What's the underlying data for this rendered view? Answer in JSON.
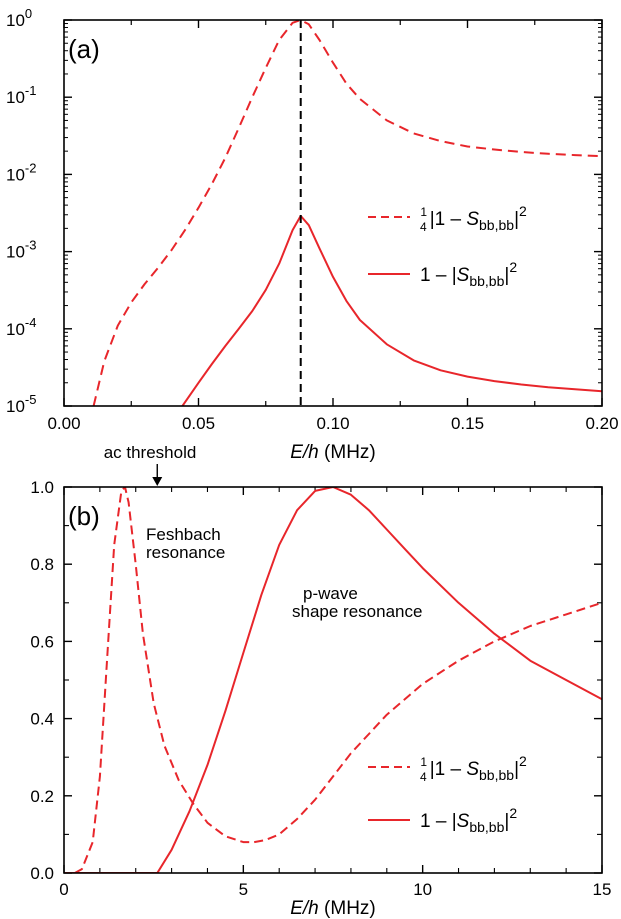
{
  "colors": {
    "curve": "#e8262b",
    "guide": "#000000"
  },
  "chart_data": [
    {
      "panel": "(a)",
      "type": "line",
      "xlabel_italic": "E/h",
      "xlabel_unit": "(MHz)",
      "xlim": [
        0.0,
        0.2
      ],
      "ylim": [
        1e-05,
        1
      ],
      "yscale": "log",
      "xticks": [
        "0.00",
        "0.05",
        "0.10",
        "0.15",
        "0.20"
      ],
      "yticks": [
        {
          "base": "10",
          "exp": "-5"
        },
        {
          "base": "10",
          "exp": "-4"
        },
        {
          "base": "10",
          "exp": "-3"
        },
        {
          "base": "10",
          "exp": "-2"
        },
        {
          "base": "10",
          "exp": "-1"
        },
        {
          "base": "10",
          "exp": "0"
        }
      ],
      "vertical_marker_x": 0.088,
      "legend_position": "right",
      "series": [
        {
          "name": "¼|1 − S_bb,bb|²",
          "style": "dashed",
          "x": [
            0.011,
            0.015,
            0.02,
            0.025,
            0.03,
            0.035,
            0.04,
            0.045,
            0.05,
            0.055,
            0.06,
            0.065,
            0.07,
            0.075,
            0.08,
            0.085,
            0.088,
            0.091,
            0.095,
            0.1,
            0.105,
            0.11,
            0.12,
            0.13,
            0.14,
            0.15,
            0.16,
            0.17,
            0.18,
            0.19,
            0.2
          ],
          "y": [
            1e-05,
            3.8e-05,
            0.00011,
            0.00022,
            0.00038,
            0.00062,
            0.00105,
            0.0019,
            0.0037,
            0.0075,
            0.0165,
            0.04,
            0.1,
            0.24,
            0.55,
            0.92,
            1.0,
            0.88,
            0.55,
            0.28,
            0.15,
            0.095,
            0.05,
            0.034,
            0.027,
            0.023,
            0.021,
            0.0195,
            0.0185,
            0.0178,
            0.0172
          ]
        },
        {
          "name": "1 − |S_bb,bb|²",
          "style": "solid",
          "x": [
            0.044,
            0.05,
            0.055,
            0.06,
            0.065,
            0.07,
            0.075,
            0.08,
            0.085,
            0.088,
            0.091,
            0.095,
            0.1,
            0.105,
            0.11,
            0.12,
            0.13,
            0.14,
            0.15,
            0.16,
            0.17,
            0.18,
            0.19,
            0.2
          ],
          "y": [
            1e-05,
            2e-05,
            3.5e-05,
            6e-05,
            0.0001,
            0.00017,
            0.00032,
            0.0007,
            0.0019,
            0.0029,
            0.0022,
            0.0011,
            0.00047,
            0.00023,
            0.00013,
            6.3e-05,
            3.9e-05,
            2.9e-05,
            2.4e-05,
            2.1e-05,
            1.9e-05,
            1.75e-05,
            1.65e-05,
            1.55e-05
          ]
        }
      ]
    },
    {
      "panel": "(b)",
      "type": "line",
      "xlabel_italic": "E/h",
      "xlabel_unit": "(MHz)",
      "xlim": [
        0,
        15
      ],
      "ylim": [
        0.0,
        1.0
      ],
      "xticks": [
        "0",
        "5",
        "10",
        "15"
      ],
      "yticks": [
        "0.0",
        "0.2",
        "0.4",
        "0.6",
        "0.8",
        "1.0"
      ],
      "legend_position": "bottom-right",
      "annotations": {
        "threshold": "ac threshold",
        "threshold_x": 2.6,
        "feshbach_line1": "Feshbach",
        "feshbach_line2": "resonance",
        "shape_line1": "p-wave",
        "shape_line2": "shape resonance"
      },
      "series": [
        {
          "name": "¼|1 − S_bb,bb|²",
          "style": "dashed",
          "x": [
            0.3,
            0.5,
            0.8,
            1.0,
            1.2,
            1.4,
            1.6,
            1.7,
            1.8,
            2.0,
            2.2,
            2.5,
            2.8,
            3.2,
            3.6,
            4.0,
            4.5,
            5.0,
            5.3,
            5.6,
            6.0,
            6.5,
            7.0,
            7.5,
            8.0,
            8.5,
            9.0,
            10.0,
            11.0,
            12.0,
            13.0,
            14.0,
            15.0
          ],
          "y": [
            0.0,
            0.01,
            0.08,
            0.25,
            0.55,
            0.85,
            0.99,
            1.0,
            0.96,
            0.8,
            0.62,
            0.44,
            0.33,
            0.24,
            0.18,
            0.13,
            0.095,
            0.08,
            0.08,
            0.085,
            0.1,
            0.14,
            0.19,
            0.25,
            0.31,
            0.36,
            0.41,
            0.49,
            0.55,
            0.6,
            0.64,
            0.67,
            0.7
          ]
        },
        {
          "name": "1 − |S_bb,bb|²",
          "style": "solid",
          "x": [
            0,
            2.6,
            3.0,
            3.5,
            4.0,
            4.5,
            5.0,
            5.5,
            6.0,
            6.5,
            7.0,
            7.5,
            8.0,
            8.5,
            9.0,
            9.5,
            10.0,
            11.0,
            12.0,
            13.0,
            14.0,
            15.0
          ],
          "y": [
            0.0,
            0.0,
            0.06,
            0.16,
            0.28,
            0.42,
            0.57,
            0.72,
            0.85,
            0.94,
            0.99,
            1.0,
            0.98,
            0.94,
            0.89,
            0.84,
            0.79,
            0.7,
            0.62,
            0.55,
            0.5,
            0.45
          ]
        }
      ]
    }
  ]
}
